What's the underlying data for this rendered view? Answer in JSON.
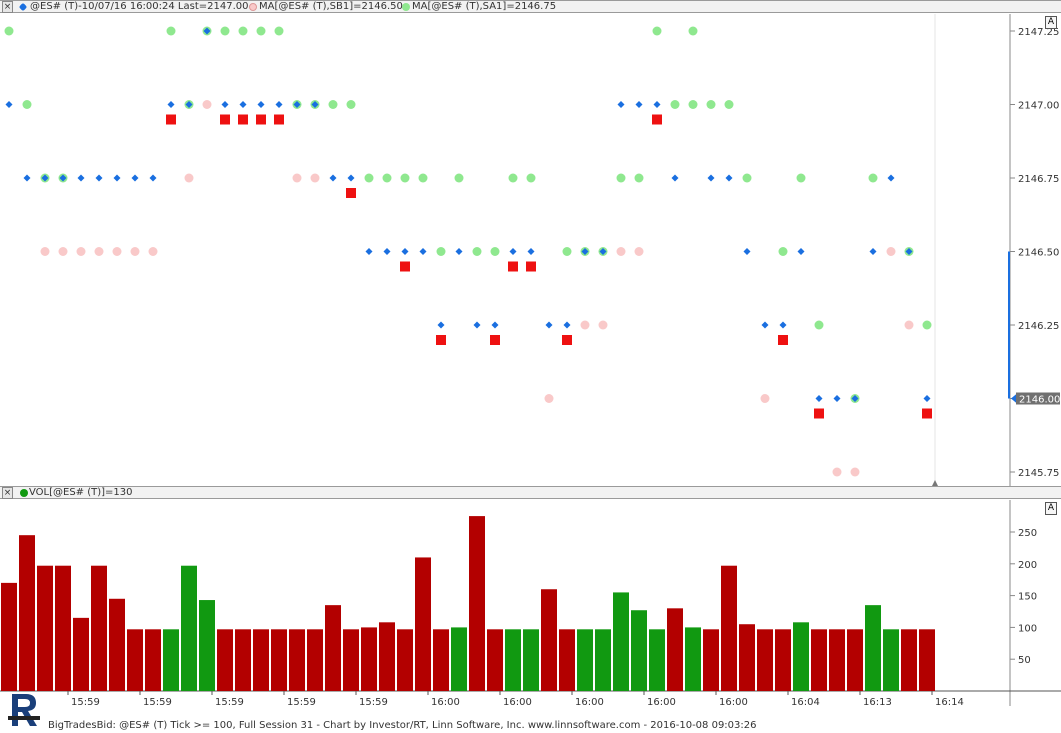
{
  "header_price": {
    "symbol_text": "@ES# (T)-10/07/16 16:00:24 Last=2147.00",
    "ma_sb1_text": "MA[@ES# (T),SB1]=2146.50",
    "ma_sa1_text": "MA[@ES# (T),SA1]=2146.75",
    "close_label": "×"
  },
  "header_volume": {
    "vol_text": "VOL[@ES# (T)]=130",
    "close_label": "×"
  },
  "scale_button_label": "A",
  "last_price_label": "2146.00",
  "footer_text": "BigTradesBid: @ES# (T) Tick >= 100, Full Session 31 - Chart by Investor/RT, Linn Software, Inc. www.linnsoftware.com - 2016-10-08 09:03:26",
  "colors": {
    "bid_dot": "#f9c9c9",
    "ask_dot": "#8fe88f",
    "last_diamond": "#1a6fe0",
    "big_trade": "#ee1111",
    "vol_down": "#b30000",
    "vol_up": "#119911",
    "price_line": "#1a6fe0"
  },
  "chart_data": [
    {
      "type": "scatter",
      "name": "price",
      "y_ticks": [
        2145.75,
        2146.0,
        2146.25,
        2146.5,
        2146.75,
        2147.0,
        2147.25
      ],
      "y_tick_labels": [
        "2145.75",
        "2146.00",
        "2146.25",
        "2146.50",
        "2146.75",
        "2147.00",
        "2147.25"
      ],
      "ylim": [
        2145.72,
        2147.28
      ],
      "bars": 52,
      "last_line": [
        2146.0,
        2146.5
      ],
      "bid_dots": [
        [
          2,
          2146.5
        ],
        [
          3,
          2146.5
        ],
        [
          4,
          2146.5
        ],
        [
          5,
          2146.5
        ],
        [
          6,
          2146.5
        ],
        [
          7,
          2146.5
        ],
        [
          8,
          2146.5
        ],
        [
          10,
          2146.75
        ],
        [
          11,
          2147.0
        ],
        [
          16,
          2146.75
        ],
        [
          17,
          2146.75
        ],
        [
          30,
          2146.0
        ],
        [
          32,
          2146.25
        ],
        [
          33,
          2146.25
        ],
        [
          34,
          2146.5
        ],
        [
          35,
          2146.5
        ],
        [
          42,
          2146.0
        ],
        [
          46,
          2145.75
        ],
        [
          47,
          2145.75
        ],
        [
          49,
          2146.5
        ],
        [
          50,
          2146.25
        ]
      ],
      "ask_dots": [
        [
          0,
          2147.25
        ],
        [
          1,
          2147.0
        ],
        [
          2,
          2146.75
        ],
        [
          3,
          2146.75
        ],
        [
          9,
          2147.25
        ],
        [
          10,
          2147.0
        ],
        [
          11,
          2147.25
        ],
        [
          12,
          2147.25
        ],
        [
          13,
          2147.25
        ],
        [
          14,
          2147.25
        ],
        [
          15,
          2147.25
        ],
        [
          16,
          2147.0
        ],
        [
          17,
          2147.0
        ],
        [
          18,
          2147.0
        ],
        [
          19,
          2147.0
        ],
        [
          20,
          2146.75
        ],
        [
          21,
          2146.75
        ],
        [
          22,
          2146.75
        ],
        [
          23,
          2146.75
        ],
        [
          24,
          2146.5
        ],
        [
          25,
          2146.75
        ],
        [
          26,
          2146.5
        ],
        [
          27,
          2146.5
        ],
        [
          28,
          2146.75
        ],
        [
          29,
          2146.75
        ],
        [
          31,
          2146.5
        ],
        [
          32,
          2146.5
        ],
        [
          33,
          2146.5
        ],
        [
          34,
          2146.75
        ],
        [
          35,
          2146.75
        ],
        [
          36,
          2147.25
        ],
        [
          37,
          2147.0
        ],
        [
          38,
          2147.25
        ],
        [
          38,
          2147.0
        ],
        [
          39,
          2147.0
        ],
        [
          40,
          2147.0
        ],
        [
          41,
          2146.75
        ],
        [
          43,
          2146.5
        ],
        [
          44,
          2146.75
        ],
        [
          45,
          2146.25
        ],
        [
          47,
          2146.0
        ],
        [
          48,
          2146.75
        ],
        [
          50,
          2146.5
        ],
        [
          51,
          2146.25
        ]
      ],
      "last_diamonds": [
        [
          0,
          2147.0
        ],
        [
          1,
          2146.75
        ],
        [
          2,
          2146.75
        ],
        [
          3,
          2146.75
        ],
        [
          4,
          2146.75
        ],
        [
          5,
          2146.75
        ],
        [
          6,
          2146.75
        ],
        [
          7,
          2146.75
        ],
        [
          8,
          2146.75
        ],
        [
          9,
          2147.0
        ],
        [
          10,
          2147.0
        ],
        [
          11,
          2147.25
        ],
        [
          12,
          2147.0
        ],
        [
          13,
          2147.0
        ],
        [
          14,
          2147.0
        ],
        [
          15,
          2147.0
        ],
        [
          16,
          2147.0
        ],
        [
          17,
          2147.0
        ],
        [
          18,
          2146.75
        ],
        [
          19,
          2146.75
        ],
        [
          20,
          2146.5
        ],
        [
          21,
          2146.5
        ],
        [
          22,
          2146.5
        ],
        [
          23,
          2146.5
        ],
        [
          24,
          2146.25
        ],
        [
          25,
          2146.5
        ],
        [
          26,
          2146.25
        ],
        [
          27,
          2146.25
        ],
        [
          28,
          2146.5
        ],
        [
          29,
          2146.5
        ],
        [
          30,
          2146.25
        ],
        [
          31,
          2146.25
        ],
        [
          32,
          2146.5
        ],
        [
          33,
          2146.5
        ],
        [
          34,
          2147.0
        ],
        [
          35,
          2147.0
        ],
        [
          36,
          2147.0
        ],
        [
          37,
          2146.75
        ],
        [
          39,
          2146.75
        ],
        [
          40,
          2146.75
        ],
        [
          41,
          2146.5
        ],
        [
          42,
          2146.25
        ],
        [
          43,
          2146.25
        ],
        [
          44,
          2146.5
        ],
        [
          45,
          2146.0
        ],
        [
          46,
          2146.0
        ],
        [
          47,
          2146.0
        ],
        [
          48,
          2146.5
        ],
        [
          49,
          2146.75
        ],
        [
          50,
          2146.5
        ],
        [
          51,
          2146.0
        ]
      ],
      "big_trades": [
        [
          9,
          2147.0
        ],
        [
          12,
          2147.0
        ],
        [
          13,
          2147.0
        ],
        [
          14,
          2147.0
        ],
        [
          15,
          2147.0
        ],
        [
          19,
          2146.75
        ],
        [
          22,
          2146.5
        ],
        [
          24,
          2146.25
        ],
        [
          27,
          2146.25
        ],
        [
          28,
          2146.5
        ],
        [
          29,
          2146.5
        ],
        [
          31,
          2146.25
        ],
        [
          36,
          2147.0
        ],
        [
          43,
          2146.25
        ],
        [
          45,
          2146.0
        ],
        [
          51,
          2146.0
        ]
      ]
    },
    {
      "type": "bar",
      "name": "volume",
      "values": [
        170,
        245,
        197,
        197,
        115,
        197,
        145,
        97,
        97,
        97,
        197,
        143,
        97,
        97,
        97,
        97,
        97,
        97,
        135,
        97,
        100,
        108,
        97,
        210,
        97,
        100,
        275,
        97,
        97,
        97,
        160,
        97,
        97,
        97,
        155,
        127,
        97,
        130,
        100,
        97,
        197,
        105,
        97,
        97,
        108,
        97,
        97,
        97,
        135,
        97,
        97,
        97
      ],
      "colors": [
        "down",
        "down",
        "down",
        "down",
        "down",
        "down",
        "down",
        "down",
        "down",
        "up",
        "up",
        "up",
        "down",
        "down",
        "down",
        "down",
        "down",
        "down",
        "down",
        "down",
        "down",
        "down",
        "down",
        "down",
        "down",
        "up",
        "down",
        "down",
        "up",
        "up",
        "down",
        "down",
        "up",
        "up",
        "up",
        "up",
        "up",
        "down",
        "up",
        "down",
        "down",
        "down",
        "down",
        "down",
        "up",
        "down",
        "down",
        "down",
        "up",
        "up",
        "down",
        "down"
      ],
      "y_ticks": [
        50,
        100,
        150,
        200,
        250
      ],
      "ylim": [
        0,
        280
      ],
      "x_tick_labels": [
        "15:59",
        "15:59",
        "15:59",
        "15:59",
        "15:59",
        "16:00",
        "16:00",
        "16:00",
        "16:00",
        "16:00",
        "16:04",
        "16:13",
        "16:14"
      ]
    }
  ]
}
